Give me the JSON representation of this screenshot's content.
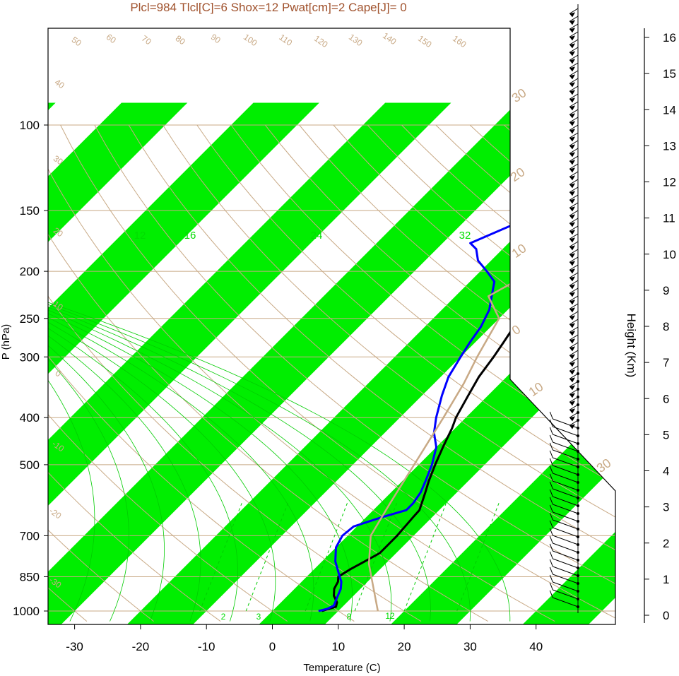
{
  "chart_data": {
    "type": "line",
    "title": "Plcl=984 Tlcl[C]=6 Shox=12 Pwat[cm]=2 Cape[J]= 0",
    "xlabel": "Temperature (C)",
    "ylabel": "P (hPa)",
    "y2label": "Height (Km)",
    "x_ticks": [
      "-30",
      "-20",
      "-10",
      "0",
      "10",
      "20",
      "30",
      "40"
    ],
    "y_ticks": [
      "100",
      "150",
      "200",
      "250",
      "300",
      "400",
      "500",
      "700",
      "850",
      "1000"
    ],
    "height_ticks": [
      "0",
      "1",
      "2",
      "3",
      "4",
      "5",
      "6",
      "7",
      "8",
      "9",
      "10",
      "11",
      "12",
      "13",
      "14",
      "15",
      "16"
    ],
    "dry_adiabat_labels": [
      "50",
      "60",
      "70",
      "80",
      "90",
      "100",
      "110",
      "120",
      "130",
      "140",
      "150",
      "160"
    ],
    "moist_adiabat_labels": [
      "40",
      "30",
      "20",
      "10",
      "0",
      "-10",
      "-20",
      "-30"
    ],
    "isotherm_labels": [
      "30",
      "20",
      "10",
      "0",
      "10",
      "30"
    ],
    "mixing_ratio_labels": [
      "12",
      "16",
      "24",
      "32",
      "2",
      "3",
      "8",
      "12"
    ],
    "xlim": [
      -33,
      52
    ],
    "ylim": [
      1050,
      100
    ],
    "series": [
      {
        "name": "Temperature",
        "color": "#000000",
        "points": [
          [
            7.5,
            1000
          ],
          [
            9,
            980
          ],
          [
            8.5,
            960
          ],
          [
            7,
            930
          ],
          [
            6,
            900
          ],
          [
            5.5,
            870
          ],
          [
            4.8,
            850
          ],
          [
            5.5,
            820
          ],
          [
            6.5,
            790
          ],
          [
            7.5,
            760
          ],
          [
            7.5,
            730
          ],
          [
            7.5,
            700
          ],
          [
            7.3,
            670
          ],
          [
            7.1,
            640
          ],
          [
            7,
            620
          ],
          [
            6.3,
            600
          ],
          [
            5.2,
            570
          ],
          [
            4,
            540
          ],
          [
            2.5,
            500
          ],
          [
            1,
            460
          ],
          [
            -0.5,
            420
          ],
          [
            -1.5,
            400
          ],
          [
            -3,
            360
          ],
          [
            -4.2,
            330
          ],
          [
            -5,
            300
          ],
          [
            -5.7,
            280
          ],
          [
            -6.5,
            260
          ],
          [
            -7,
            240
          ],
          [
            -6.8,
            225
          ],
          [
            -6.5,
            210
          ],
          [
            -5.8,
            200
          ],
          [
            -4.8,
            185
          ],
          [
            -3.5,
            170
          ],
          [
            -2,
            160
          ],
          [
            -1.2,
            150
          ],
          [
            -0.8,
            140
          ],
          [
            -0.5,
            130
          ],
          [
            0.5,
            120
          ],
          [
            2,
            110
          ],
          [
            3.5,
            100
          ]
        ]
      },
      {
        "name": "Dewpoint",
        "color": "#0000ff",
        "points": [
          [
            7,
            1000
          ],
          [
            8,
            990
          ],
          [
            8.5,
            975
          ],
          [
            8,
            950
          ],
          [
            7,
            900
          ],
          [
            6,
            870
          ],
          [
            5,
            850
          ],
          [
            2,
            790
          ],
          [
            0,
            740
          ],
          [
            -0.8,
            700
          ],
          [
            -0.5,
            670
          ],
          [
            2.5,
            640
          ],
          [
            5,
            620
          ],
          [
            5,
            600
          ],
          [
            4.5,
            570
          ],
          [
            3.5,
            540
          ],
          [
            2,
            500
          ],
          [
            0,
            460
          ],
          [
            -2.5,
            430
          ],
          [
            -4.5,
            400
          ],
          [
            -7,
            360
          ],
          [
            -8.8,
            330
          ],
          [
            -10,
            300
          ],
          [
            -10.8,
            280
          ],
          [
            -11.5,
            260
          ],
          [
            -12.8,
            240
          ],
          [
            -14.5,
            225
          ],
          [
            -16.3,
            210
          ],
          [
            -19,
            200
          ],
          [
            -22,
            190
          ],
          [
            -24,
            180
          ],
          [
            -25.8,
            175
          ],
          [
            -22,
            160
          ],
          [
            -16,
            130
          ],
          [
            -12.3,
            118
          ],
          [
            -9,
            108
          ],
          [
            -6,
            100
          ]
        ]
      },
      {
        "name": "Parcel",
        "color": "#c8a985",
        "points": [
          [
            16,
            1000
          ],
          [
            7.5,
            800
          ],
          [
            3.5,
            700
          ],
          [
            1.5,
            600
          ],
          [
            -0.7,
            500
          ],
          [
            -3.4,
            400
          ],
          [
            -5.5,
            340
          ],
          [
            -7.5,
            300
          ],
          [
            -10,
            250
          ],
          [
            -15,
            225
          ],
          [
            -12,
            200
          ],
          [
            -7.5,
            170
          ],
          [
            -4,
            150
          ],
          [
            -1,
            130
          ],
          [
            2,
            110
          ],
          [
            3,
            100
          ]
        ]
      }
    ],
    "wind_barbs": "present"
  }
}
